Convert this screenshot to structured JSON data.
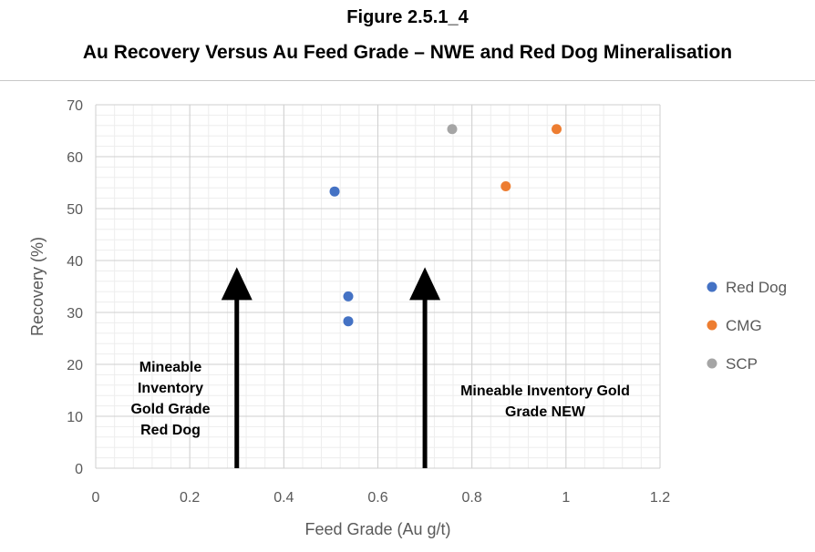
{
  "figure": {
    "number": "Figure 2.5.1_4",
    "title": "Au Recovery Versus Au Feed Grade – NWE and Red Dog Mineralisation"
  },
  "chart_data": {
    "type": "scatter",
    "xlabel": "Feed Grade (Au g/t)",
    "ylabel": "Recovery (%)",
    "xlim": [
      0,
      1.2
    ],
    "ylim": [
      0,
      70
    ],
    "x_ticks": [
      "0",
      "0.2",
      "0.4",
      "0.6",
      "0.8",
      "1",
      "1.2"
    ],
    "y_ticks": [
      "0",
      "10",
      "20",
      "30",
      "40",
      "50",
      "60",
      "70"
    ],
    "grid": true,
    "legend_position": "right",
    "series": [
      {
        "name": "Red Dog",
        "color": "#4472C4",
        "points": [
          [
            0.508,
            53.3
          ],
          [
            0.537,
            33.1
          ],
          [
            0.537,
            28.3
          ]
        ]
      },
      {
        "name": "CMG",
        "color": "#ED7D31",
        "points": [
          [
            0.872,
            54.3
          ],
          [
            0.98,
            65.3
          ]
        ]
      },
      {
        "name": "SCP",
        "color": "#A5A5A5",
        "points": [
          [
            0.758,
            65.3
          ]
        ]
      }
    ],
    "annotations": [
      {
        "lines": [
          "Mineable",
          "Inventory",
          "Gold Grade",
          "Red Dog"
        ],
        "arrow_x": 0.3,
        "arrow_from_y": 0,
        "arrow_to_y": 38
      },
      {
        "lines": [
          "Mineable Inventory Gold",
          "Grade NEW"
        ],
        "arrow_x": 0.7,
        "arrow_from_y": 0,
        "arrow_to_y": 38
      }
    ]
  }
}
